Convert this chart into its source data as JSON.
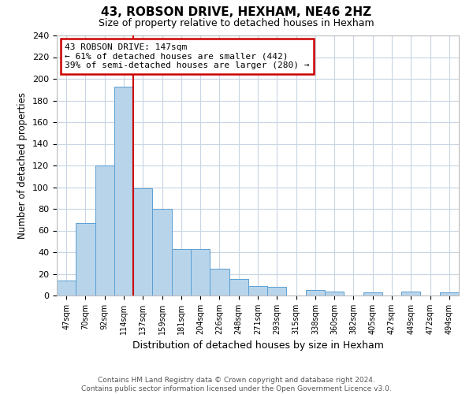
{
  "title": "43, ROBSON DRIVE, HEXHAM, NE46 2HZ",
  "subtitle": "Size of property relative to detached houses in Hexham",
  "xlabel": "Distribution of detached houses by size in Hexham",
  "ylabel": "Number of detached properties",
  "bin_labels": [
    "47sqm",
    "70sqm",
    "92sqm",
    "114sqm",
    "137sqm",
    "159sqm",
    "181sqm",
    "204sqm",
    "226sqm",
    "248sqm",
    "271sqm",
    "293sqm",
    "315sqm",
    "338sqm",
    "360sqm",
    "382sqm",
    "405sqm",
    "427sqm",
    "449sqm",
    "472sqm",
    "494sqm"
  ],
  "bar_heights": [
    14,
    67,
    120,
    193,
    99,
    80,
    43,
    43,
    25,
    15,
    9,
    8,
    0,
    5,
    4,
    0,
    3,
    0,
    4,
    0,
    3
  ],
  "bar_color": "#b8d4ea",
  "bar_edge_color": "#5a9fd4",
  "property_line_color": "#cc0000",
  "annotation_title": "43 ROBSON DRIVE: 147sqm",
  "annotation_line1": "← 61% of detached houses are smaller (442)",
  "annotation_line2": "39% of semi-detached houses are larger (280) →",
  "annotation_box_color": "#cc0000",
  "ylim": [
    0,
    240
  ],
  "yticks": [
    0,
    20,
    40,
    60,
    80,
    100,
    120,
    140,
    160,
    180,
    200,
    220,
    240
  ],
  "footer_line1": "Contains HM Land Registry data © Crown copyright and database right 2024.",
  "footer_line2": "Contains public sector information licensed under the Open Government Licence v3.0.",
  "background_color": "#ffffff",
  "grid_color": "#c8d4e4"
}
